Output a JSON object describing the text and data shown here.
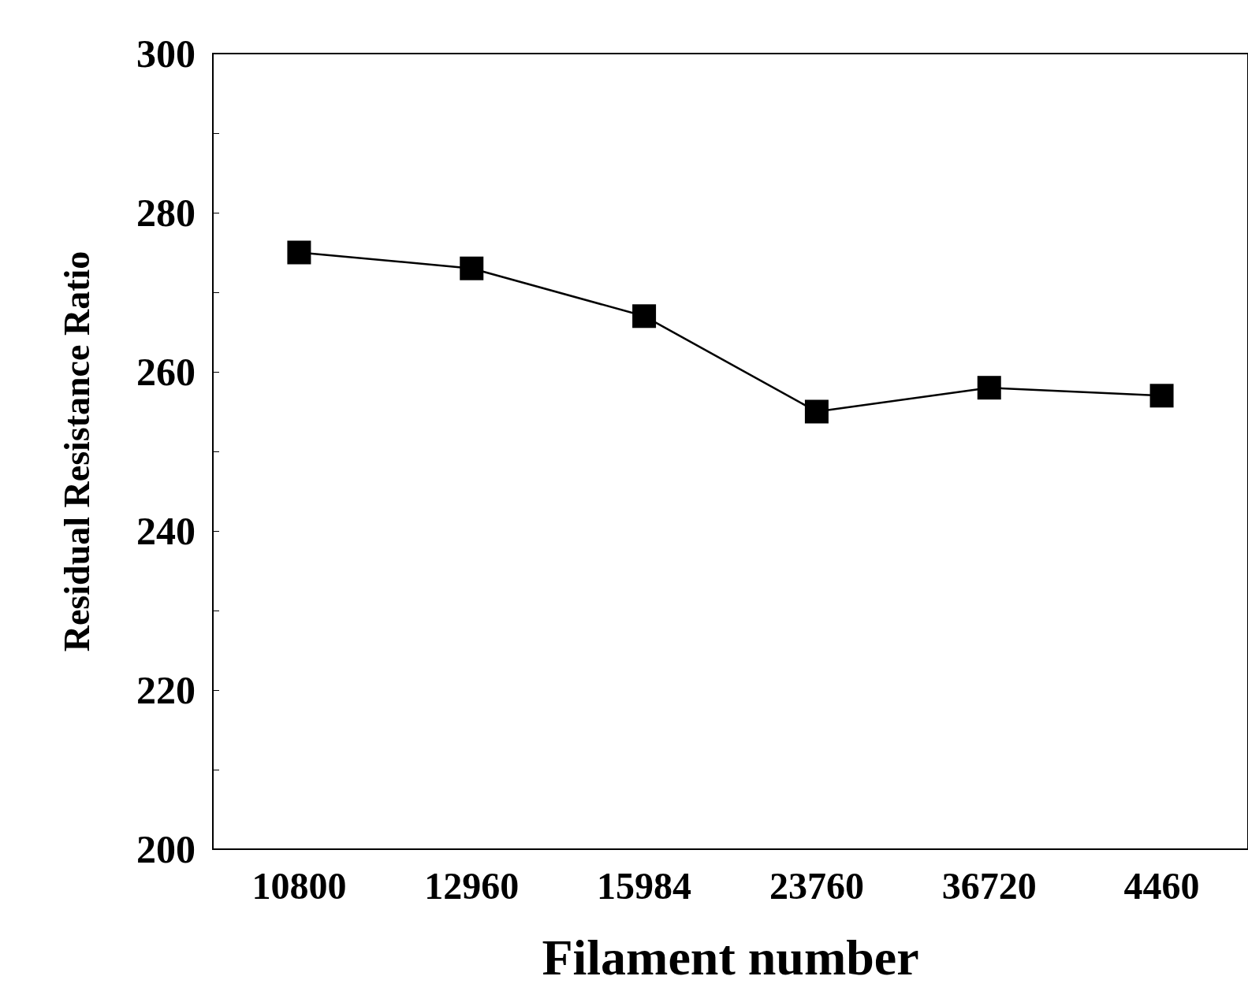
{
  "chart_data": {
    "type": "line",
    "xlabel": "Filament number",
    "ylabel": "Residual Resistance Ratio",
    "categories": [
      "10800",
      "12960",
      "15984",
      "23760",
      "36720",
      "4460"
    ],
    "series": [
      {
        "color": "#000000",
        "values": [
          275,
          273,
          267,
          255,
          258,
          257
        ]
      }
    ],
    "ylim": [
      200,
      300
    ],
    "yticks": [
      200,
      220,
      240,
      260,
      280,
      300
    ],
    "grid": false,
    "marker": "square",
    "line_style": "solid"
  }
}
